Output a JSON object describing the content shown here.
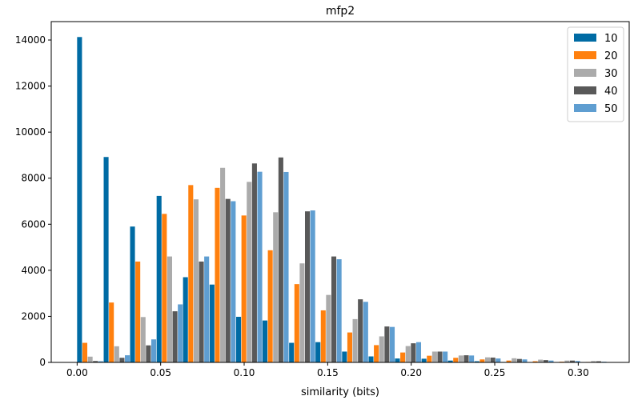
{
  "chart_data": {
    "type": "bar",
    "title": "mfp2",
    "xlabel": "similarity (bits)",
    "ylabel": "",
    "xlim": [
      -0.0155,
      0.3305
    ],
    "ylim": [
      0,
      14800
    ],
    "xticks": [
      0.0,
      0.05,
      0.1,
      0.15,
      0.2,
      0.25,
      0.3
    ],
    "xtick_labels": [
      "0.00",
      "0.05",
      "0.10",
      "0.15",
      "0.20",
      "0.25",
      "0.30"
    ],
    "yticks": [
      0,
      2000,
      4000,
      6000,
      8000,
      10000,
      12000,
      14000
    ],
    "ytick_labels": [
      "0",
      "2000",
      "4000",
      "6000",
      "8000",
      "10000",
      "12000",
      "14000"
    ],
    "bin_width": 0.01586,
    "bins": [
      0.0,
      0.0159,
      0.0317,
      0.0476,
      0.0634,
      0.0793,
      0.0952,
      0.111,
      0.1269,
      0.1427,
      0.1586,
      0.1745,
      0.1903,
      0.2062,
      0.222,
      0.2379,
      0.2538,
      0.2696,
      0.2855,
      0.3013
    ],
    "legend_position": "top-right",
    "grid": false,
    "series": [
      {
        "name": "10",
        "color": "#006ba4",
        "values": [
          14130,
          8920,
          5900,
          7230,
          3700,
          3380,
          1980,
          1820,
          850,
          880,
          470,
          260,
          170,
          160,
          80,
          50,
          20,
          10,
          5,
          2
        ]
      },
      {
        "name": "20",
        "color": "#ff800e",
        "values": [
          850,
          2600,
          4380,
          6450,
          7700,
          7580,
          6380,
          4870,
          3400,
          2260,
          1300,
          750,
          430,
          290,
          200,
          130,
          80,
          50,
          30,
          20
        ]
      },
      {
        "name": "30",
        "color": "#ababab",
        "values": [
          250,
          700,
          1970,
          4600,
          7080,
          8450,
          7840,
          6520,
          4300,
          2930,
          1880,
          1130,
          710,
          470,
          300,
          220,
          180,
          120,
          80,
          60
        ]
      },
      {
        "name": "40",
        "color": "#595959",
        "values": [
          60,
          200,
          740,
          2220,
          4380,
          7100,
          8640,
          8900,
          6560,
          4600,
          2740,
          1560,
          830,
          470,
          310,
          210,
          150,
          100,
          80,
          50
        ]
      },
      {
        "name": "50",
        "color": "#5f9ed1",
        "values": [
          50,
          310,
          1000,
          2520,
          4600,
          7000,
          8280,
          8270,
          6600,
          4480,
          2630,
          1540,
          880,
          470,
          300,
          170,
          130,
          80,
          60,
          30
        ]
      }
    ]
  }
}
